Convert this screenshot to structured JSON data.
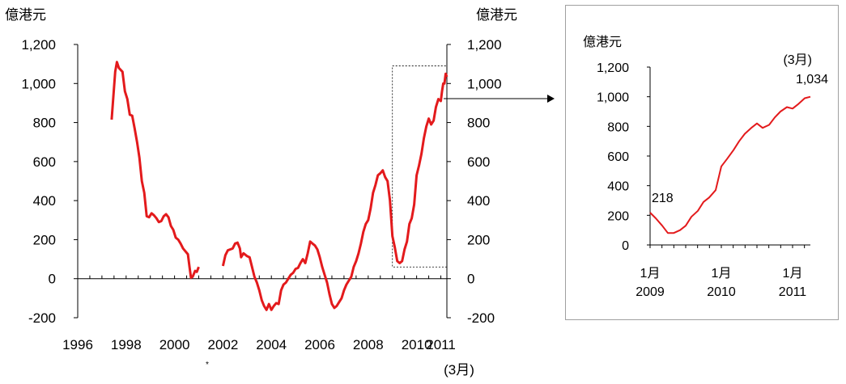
{
  "chart_data": [
    {
      "type": "line",
      "unit_left": "億港元",
      "unit_right": "億港元",
      "ylim": [
        -200,
        1200
      ],
      "yticks": [
        -200,
        0,
        200,
        400,
        600,
        800,
        1000,
        1200
      ],
      "ytick_labels": [
        "-200",
        "0",
        "200",
        "400",
        "600",
        "800",
        "1,000",
        "1,200"
      ],
      "xlim": [
        1996,
        2011.25
      ],
      "xticks": [
        1996,
        1998,
        2000,
        2002,
        2004,
        2006,
        2008,
        2010,
        2011
      ],
      "xtick_labels": [
        "1996",
        "1998",
        "2000",
        "2002",
        "2004",
        "2006",
        "2008",
        "2010",
        "2011"
      ],
      "xtick_note": "(3月)",
      "footnote": "*",
      "grid": false,
      "color": "#e31a1c",
      "series": [
        {
          "segments": [
            [
              [
                1997.4,
                815
              ],
              [
                1997.55,
                1060
              ],
              [
                1997.62,
                1110
              ],
              [
                1997.7,
                1080
              ],
              [
                1997.85,
                1060
              ],
              [
                1997.95,
                960
              ],
              [
                1998.05,
                920
              ],
              [
                1998.15,
                840
              ],
              [
                1998.25,
                835
              ],
              [
                1998.35,
                770
              ],
              [
                1998.45,
                700
              ],
              [
                1998.55,
                620
              ],
              [
                1998.65,
                500
              ],
              [
                1998.75,
                440
              ],
              [
                1998.85,
                320
              ],
              [
                1998.95,
                315
              ],
              [
                1999.05,
                335
              ],
              [
                1999.15,
                325
              ],
              [
                1999.25,
                310
              ],
              [
                1999.35,
                290
              ],
              [
                1999.45,
                295
              ],
              [
                1999.55,
                320
              ],
              [
                1999.65,
                330
              ],
              [
                1999.75,
                315
              ],
              [
                1999.85,
                270
              ],
              [
                1999.95,
                250
              ],
              [
                2000.05,
                210
              ],
              [
                2000.15,
                200
              ],
              [
                2000.25,
                180
              ],
              [
                2000.35,
                155
              ],
              [
                2000.45,
                140
              ],
              [
                2000.55,
                125
              ],
              [
                2000.62,
                60
              ],
              [
                2000.68,
                5
              ],
              [
                2000.75,
                10
              ],
              [
                2000.85,
                40
              ],
              [
                2000.92,
                35
              ],
              [
                2001.0,
                60
              ]
            ],
            [
              [
                2002.0,
                65
              ],
              [
                2002.1,
                120
              ],
              [
                2002.2,
                145
              ],
              [
                2002.3,
                150
              ],
              [
                2002.4,
                155
              ],
              [
                2002.5,
                180
              ],
              [
                2002.6,
                185
              ],
              [
                2002.7,
                155
              ],
              [
                2002.75,
                110
              ],
              [
                2002.85,
                130
              ],
              [
                2003.0,
                115
              ],
              [
                2003.1,
                110
              ],
              [
                2003.2,
                60
              ],
              [
                2003.3,
                10
              ],
              [
                2003.4,
                -20
              ],
              [
                2003.5,
                -60
              ],
              [
                2003.6,
                -110
              ],
              [
                2003.7,
                -140
              ],
              [
                2003.8,
                -160
              ],
              [
                2003.9,
                -130
              ],
              [
                2004.0,
                -160
              ],
              [
                2004.1,
                -140
              ],
              [
                2004.2,
                -125
              ],
              [
                2004.3,
                -130
              ],
              [
                2004.4,
                -60
              ],
              [
                2004.5,
                -30
              ],
              [
                2004.6,
                -20
              ],
              [
                2004.7,
                0
              ],
              [
                2004.8,
                20
              ],
              [
                2004.9,
                30
              ],
              [
                2005.0,
                50
              ],
              [
                2005.1,
                55
              ],
              [
                2005.2,
                80
              ],
              [
                2005.3,
                100
              ],
              [
                2005.4,
                80
              ],
              [
                2005.5,
                130
              ],
              [
                2005.6,
                190
              ],
              [
                2005.7,
                180
              ],
              [
                2005.8,
                170
              ],
              [
                2005.9,
                150
              ],
              [
                2006.0,
                110
              ],
              [
                2006.1,
                60
              ],
              [
                2006.2,
                20
              ],
              [
                2006.3,
                -20
              ],
              [
                2006.4,
                -80
              ],
              [
                2006.5,
                -130
              ],
              [
                2006.6,
                -150
              ],
              [
                2006.7,
                -140
              ],
              [
                2006.8,
                -120
              ],
              [
                2006.9,
                -100
              ],
              [
                2007.0,
                -60
              ],
              [
                2007.1,
                -30
              ],
              [
                2007.2,
                -10
              ],
              [
                2007.3,
                10
              ],
              [
                2007.4,
                60
              ],
              [
                2007.5,
                90
              ],
              [
                2007.6,
                130
              ],
              [
                2007.7,
                180
              ],
              [
                2007.8,
                240
              ],
              [
                2007.9,
                280
              ],
              [
                2008.0,
                300
              ],
              [
                2008.1,
                360
              ],
              [
                2008.2,
                440
              ],
              [
                2008.3,
                480
              ],
              [
                2008.4,
                530
              ],
              [
                2008.5,
                540
              ],
              [
                2008.6,
                555
              ],
              [
                2008.7,
                520
              ],
              [
                2008.8,
                500
              ],
              [
                2008.9,
                400
              ],
              [
                2009.0,
                218
              ],
              [
                2009.1,
                160
              ],
              [
                2009.2,
                90
              ],
              [
                2009.3,
                80
              ],
              [
                2009.4,
                90
              ],
              [
                2009.5,
                150
              ],
              [
                2009.6,
                190
              ],
              [
                2009.7,
                280
              ],
              [
                2009.8,
                310
              ],
              [
                2009.9,
                380
              ],
              [
                2010.0,
                530
              ],
              [
                2010.1,
                580
              ],
              [
                2010.2,
                640
              ],
              [
                2010.3,
                720
              ],
              [
                2010.4,
                780
              ],
              [
                2010.5,
                820
              ],
              [
                2010.6,
                790
              ],
              [
                2010.7,
                810
              ],
              [
                2010.8,
                880
              ],
              [
                2010.9,
                920
              ],
              [
                2011.0,
                910
              ],
              [
                2011.05,
                960
              ],
              [
                2011.1,
                1000
              ],
              [
                2011.15,
                1000
              ],
              [
                2011.2,
                1050
              ],
              [
                2011.25,
                1034
              ]
            ]
          ]
        }
      ],
      "highlight_box": {
        "x": [
          2009.0,
          2011.25
        ],
        "y": [
          60,
          1090
        ]
      }
    },
    {
      "type": "line",
      "unit": "億港元",
      "ylim": [
        0,
        1200
      ],
      "yticks": [
        0,
        200,
        400,
        600,
        800,
        1000,
        1200
      ],
      "ytick_labels": [
        "0",
        "200",
        "400",
        "600",
        "800",
        "1,000",
        "1,200"
      ],
      "xticks": [
        2009.0,
        2010.0,
        2011.0
      ],
      "xtick_labels": [
        [
          "1月",
          "2009"
        ],
        [
          "1月",
          "2010"
        ],
        [
          "1月",
          "2011"
        ]
      ],
      "xlim": [
        2009.0,
        2011.25
      ],
      "grid": false,
      "color": "#e31a1c",
      "annotations": [
        {
          "x": 2009.0,
          "y": 218,
          "text": "218"
        },
        {
          "x": 2011.2,
          "y": 1034,
          "text": "1,034",
          "note": "(3月)"
        }
      ],
      "series": [
        {
          "points": [
            [
              2009.0,
              218
            ],
            [
              2009.08,
              180
            ],
            [
              2009.17,
              130
            ],
            [
              2009.25,
              80
            ],
            [
              2009.33,
              80
            ],
            [
              2009.42,
              100
            ],
            [
              2009.5,
              130
            ],
            [
              2009.58,
              190
            ],
            [
              2009.67,
              230
            ],
            [
              2009.75,
              290
            ],
            [
              2009.83,
              320
            ],
            [
              2009.92,
              370
            ],
            [
              2010.0,
              530
            ],
            [
              2010.08,
              580
            ],
            [
              2010.17,
              640
            ],
            [
              2010.25,
              700
            ],
            [
              2010.33,
              750
            ],
            [
              2010.42,
              790
            ],
            [
              2010.5,
              820
            ],
            [
              2010.58,
              790
            ],
            [
              2010.67,
              810
            ],
            [
              2010.75,
              860
            ],
            [
              2010.83,
              900
            ],
            [
              2010.92,
              930
            ],
            [
              2011.0,
              920
            ],
            [
              2011.08,
              950
            ],
            [
              2011.17,
              990
            ],
            [
              2011.25,
              1000
            ],
            [
              2011.33,
              1050
            ],
            [
              2011.42,
              1034
            ]
          ]
        }
      ]
    }
  ]
}
